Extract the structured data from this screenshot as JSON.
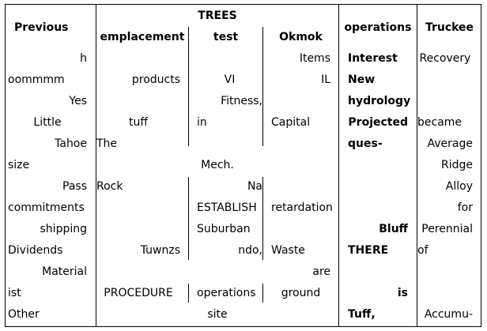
{
  "header": {
    "col1": "Previous",
    "trees": "TREES",
    "sub_a": "emplacement",
    "sub_b": "test",
    "sub_c": "Okmok",
    "col3": "operations",
    "col4": "Truckee"
  },
  "rows": [
    {
      "c1": "h",
      "c2a": "",
      "c2b": "",
      "c2c": "Items",
      "c3": "Interest",
      "c4": "Recovery"
    },
    {
      "c1": "oommmm",
      "c2a": "products",
      "c2b": "VI",
      "c2c": "IL",
      "c3": "New",
      "c4": ""
    },
    {
      "c1": "Yes",
      "c2a": "",
      "c2b": "Fitness,",
      "c2c": "",
      "c3": "hydrology",
      "c4": ""
    },
    {
      "c1": "Little",
      "c2a": "tuff",
      "c2b": "in",
      "c2c": "Capital",
      "c3": "Projected",
      "c4": "became"
    },
    {
      "c1": "Tahoe",
      "c2a": "The",
      "c2mid": "",
      "c3": "ques-",
      "c4": "Average"
    },
    {
      "c1": "size",
      "c2a": "",
      "c2mid": "Mech.",
      "c3": "",
      "c4": "Ridge"
    },
    {
      "c1": "Pass",
      "c2a": "Rock",
      "c2b": "Na",
      "c2c": "",
      "c3": "",
      "c4": "Alloy"
    },
    {
      "c1": "commitments",
      "c2a": "",
      "c2b": "ESTABLISH",
      "c2c": "retardation",
      "c3": "",
      "c4": "for"
    },
    {
      "c1": "shipping",
      "c2a": "",
      "c2b": "Suburban",
      "c2c": "",
      "c3": "Bluff",
      "c4": "Perennial"
    },
    {
      "c1": "Dividends",
      "c2a": "Tuwnzs",
      "c2b": "ndo,",
      "c2c": "Waste",
      "c3": "THERE",
      "c4": "of"
    },
    {
      "c1": "Material",
      "c2a": "",
      "c2b": "",
      "c2c": "are",
      "c3": "",
      "c4": ""
    },
    {
      "c1": "ist",
      "c2a": "PROCEDURE",
      "c2b": "operations",
      "c2c": "ground",
      "c3": "is",
      "c4": ""
    },
    {
      "c1": "Other",
      "c2a": "",
      "c2mid": "site",
      "c3": "Tuff,",
      "c4": "Accumu-"
    }
  ]
}
